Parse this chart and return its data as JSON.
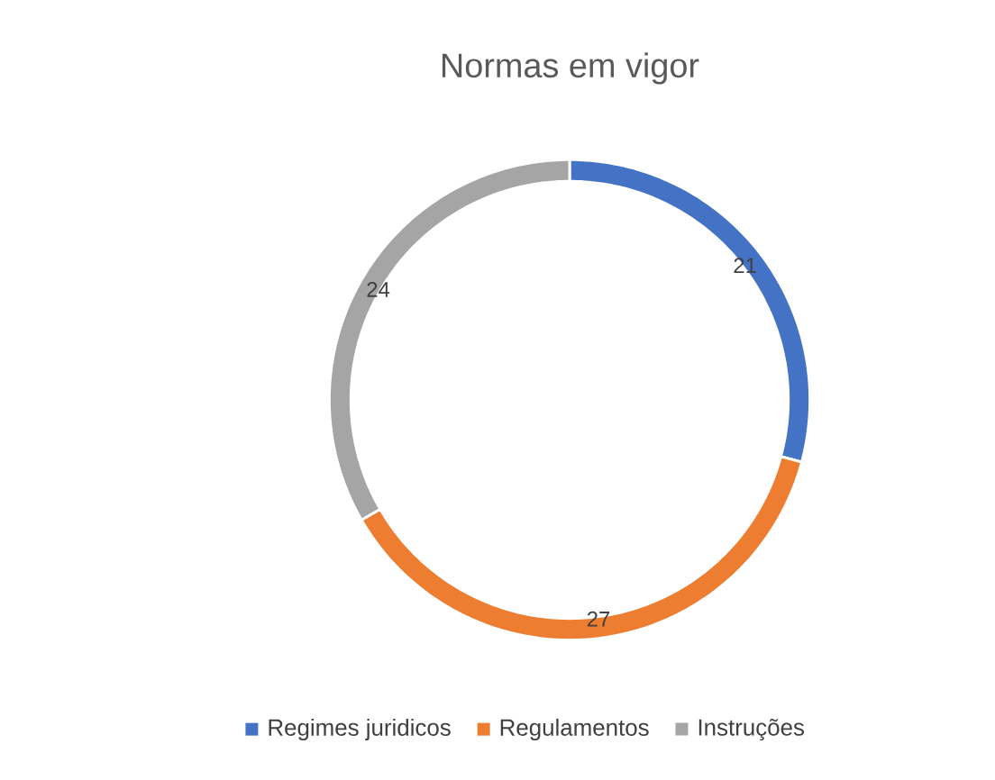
{
  "chart_data": {
    "type": "donut",
    "title": "Normas em vigor",
    "categories": [
      "Regimes juridicos",
      "Regulamentos",
      "Instruções"
    ],
    "values": [
      21,
      27,
      24
    ],
    "colors": [
      "#4472c4",
      "#ed7d31",
      "#a5a5a5"
    ],
    "data_labels": true,
    "legend": "bottom"
  }
}
